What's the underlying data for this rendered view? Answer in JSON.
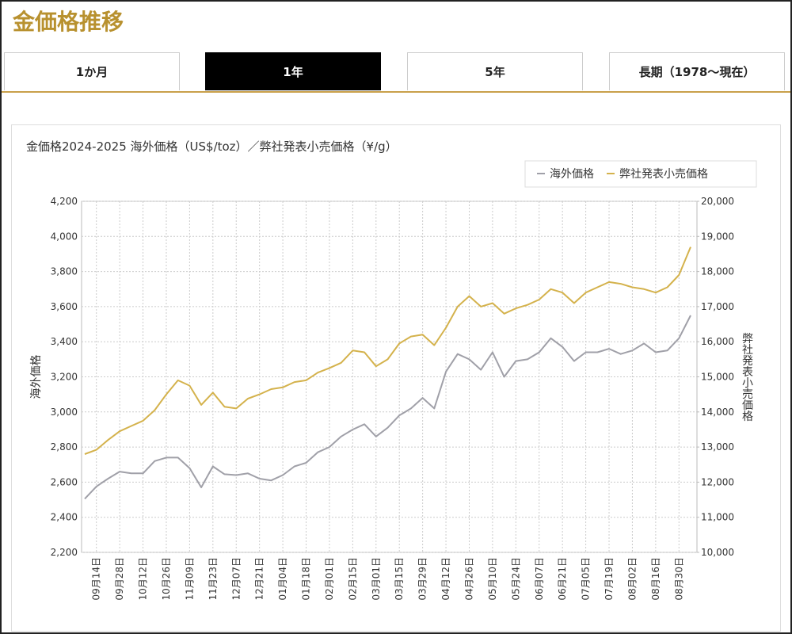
{
  "header": {
    "title": "金価格推移"
  },
  "tabs": [
    "1か月",
    "1年",
    "5年",
    "長期（1978〜現在）"
  ],
  "active_tab": 1,
  "chart_data": {
    "type": "line",
    "title": "金価格2024-2025 海外価格（US$/toz）／弊社発表小売価格（¥/g）",
    "ylabel": "海外価格",
    "y2label": "弊社発表小売価格",
    "categories": [
      null,
      "09月14日",
      null,
      "09月28日",
      null,
      "10月12日",
      null,
      "10月26日",
      null,
      "11月09日",
      null,
      "11月23日",
      null,
      "12月07日",
      null,
      "12月21日",
      null,
      "01月04日",
      null,
      "01月18日",
      null,
      "02月01日",
      null,
      "02月15日",
      null,
      "03月01日",
      null,
      "03月15日",
      null,
      "03月29日",
      null,
      "04月12日",
      null,
      "04月26日",
      null,
      "05月10日",
      null,
      "05月24日",
      null,
      "06月07日",
      null,
      "06月21日",
      null,
      "07月05日",
      null,
      "07月19日",
      null,
      "08月02日",
      null,
      "08月16日",
      null,
      "08月30日",
      null
    ],
    "series": [
      {
        "name": "海外価格",
        "color": "#a0a0a8",
        "values": [
          2505,
          2575,
          2620,
          2660,
          2650,
          2650,
          2720,
          2740,
          2740,
          2680,
          2570,
          2690,
          2645,
          2640,
          2650,
          2620,
          2610,
          2640,
          2690,
          2710,
          2770,
          2800,
          2860,
          2900,
          2930,
          2860,
          2910,
          2980,
          3020,
          3080,
          3020,
          3230,
          3330,
          3300,
          3240,
          3340,
          3200,
          3290,
          3300,
          3340,
          3420,
          3370,
          3290,
          3340,
          3340,
          3360,
          3330,
          3350,
          3390,
          3340,
          3350,
          3420,
          3550
        ]
      },
      {
        "name": "弊社発表小売価格",
        "color": "#d4b24c",
        "axis": "y2",
        "values": [
          12800,
          12920,
          13200,
          13450,
          13600,
          13750,
          14050,
          14500,
          14900,
          14750,
          14200,
          14550,
          14150,
          14100,
          14380,
          14500,
          14650,
          14700,
          14850,
          14900,
          15120,
          15250,
          15400,
          15750,
          15700,
          15300,
          15500,
          15950,
          16150,
          16200,
          15900,
          16400,
          17000,
          17300,
          17000,
          17100,
          16800,
          16950,
          17050,
          17200,
          17500,
          17400,
          17100,
          17400,
          17550,
          17700,
          17650,
          17550,
          17500,
          17400,
          17550,
          17900,
          18700
        ]
      }
    ],
    "ylim": [
      2200,
      4200
    ],
    "yticks": [
      {
        "value": 2200,
        "label": "2,200"
      },
      {
        "value": 2400,
        "label": "2,400"
      },
      {
        "value": 2600,
        "label": "2,600"
      },
      {
        "value": 2800,
        "label": "2,800"
      },
      {
        "value": 3000,
        "label": "3,000"
      },
      {
        "value": 3200,
        "label": "3,200"
      },
      {
        "value": 3400,
        "label": "3,400"
      },
      {
        "value": 3600,
        "label": "3,600"
      },
      {
        "value": 3800,
        "label": "3,800"
      },
      {
        "value": 4000,
        "label": "4,000"
      },
      {
        "value": 4200,
        "label": "4,200"
      }
    ],
    "y2lim": [
      10000,
      20000
    ],
    "y2ticks": [
      {
        "value": 10000,
        "label": "10,000"
      },
      {
        "value": 11000,
        "label": "11,000"
      },
      {
        "value": 12000,
        "label": "12,000"
      },
      {
        "value": 13000,
        "label": "13,000"
      },
      {
        "value": 14000,
        "label": "14,000"
      },
      {
        "value": 15000,
        "label": "15,000"
      },
      {
        "value": 16000,
        "label": "16,000"
      },
      {
        "value": 17000,
        "label": "17,000"
      },
      {
        "value": 18000,
        "label": "18,000"
      },
      {
        "value": 19000,
        "label": "19,000"
      },
      {
        "value": 20000,
        "label": "20,000"
      }
    ],
    "grid": true,
    "legend": "top-right"
  }
}
